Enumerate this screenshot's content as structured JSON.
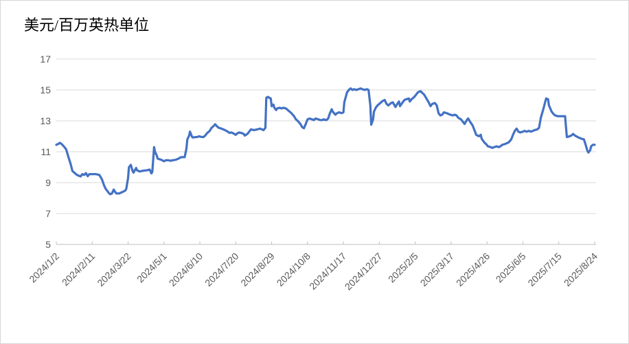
{
  "chart_data": {
    "type": "line",
    "title": "美元/百万英热单位",
    "xlabel": "",
    "ylabel": "美元/百万英热单位",
    "ylim": [
      5,
      17
    ],
    "y_ticks": [
      5,
      7,
      9,
      11,
      13,
      15,
      17
    ],
    "grid": "horizontal",
    "legend": "none",
    "x_unit": "days since 2024/1/2",
    "x_max_day": 600,
    "x_tick_days": [
      0,
      40,
      80,
      120,
      160,
      200,
      240,
      280,
      320,
      360,
      400,
      440,
      480,
      520,
      560,
      600
    ],
    "x_tick_labels": [
      "2024/1/2",
      "2024/2/11",
      "2024/3/22",
      "2024/5/1",
      "2024/6/10",
      "2024/7/20",
      "2024/8/29",
      "2024/10/8",
      "2024/11/17",
      "2024/12/27",
      "2025/2/5",
      "2025/3/17",
      "2025/4/26",
      "2025/6/5",
      "2025/7/15",
      "2025/8/24"
    ],
    "series": [
      {
        "name": "美元/百万英热单位",
        "points": [
          [
            0,
            11.45
          ],
          [
            2,
            11.5
          ],
          [
            4,
            11.58
          ],
          [
            6,
            11.5
          ],
          [
            9,
            11.3
          ],
          [
            11,
            11.15
          ],
          [
            13,
            10.75
          ],
          [
            16,
            10.2
          ],
          [
            18,
            9.75
          ],
          [
            21,
            9.6
          ],
          [
            23,
            9.5
          ],
          [
            25,
            9.45
          ],
          [
            27,
            9.4
          ],
          [
            29,
            9.55
          ],
          [
            31,
            9.5
          ],
          [
            33,
            9.62
          ],
          [
            35,
            9.42
          ],
          [
            37,
            9.55
          ],
          [
            41,
            9.55
          ],
          [
            44,
            9.55
          ],
          [
            48,
            9.5
          ],
          [
            51,
            9.2
          ],
          [
            53,
            8.85
          ],
          [
            55,
            8.6
          ],
          [
            57,
            8.45
          ],
          [
            59,
            8.3
          ],
          [
            60,
            8.25
          ],
          [
            62,
            8.3
          ],
          [
            64,
            8.55
          ],
          [
            65,
            8.45
          ],
          [
            67,
            8.3
          ],
          [
            70,
            8.3
          ],
          [
            72,
            8.35
          ],
          [
            74,
            8.4
          ],
          [
            77,
            8.5
          ],
          [
            78,
            8.6
          ],
          [
            80,
            9.3
          ],
          [
            81,
            10.0
          ],
          [
            83,
            10.15
          ],
          [
            85,
            9.75
          ],
          [
            86,
            9.65
          ],
          [
            89,
            9.95
          ],
          [
            90,
            9.8
          ],
          [
            93,
            9.72
          ],
          [
            95,
            9.75
          ],
          [
            98,
            9.78
          ],
          [
            101,
            9.8
          ],
          [
            104,
            9.85
          ],
          [
            106,
            9.6
          ],
          [
            107,
            9.7
          ],
          [
            109,
            11.3
          ],
          [
            110,
            11.0
          ],
          [
            112,
            10.75
          ],
          [
            113,
            10.55
          ],
          [
            116,
            10.5
          ],
          [
            118,
            10.45
          ],
          [
            120,
            10.38
          ],
          [
            122,
            10.45
          ],
          [
            125,
            10.45
          ],
          [
            127,
            10.42
          ],
          [
            130,
            10.45
          ],
          [
            133,
            10.48
          ],
          [
            136,
            10.55
          ],
          [
            139,
            10.65
          ],
          [
            143,
            10.65
          ],
          [
            145,
            11.2
          ],
          [
            146,
            11.8
          ],
          [
            148,
            12.05
          ],
          [
            149,
            12.3
          ],
          [
            151,
            12.0
          ],
          [
            152,
            11.92
          ],
          [
            155,
            11.95
          ],
          [
            157,
            11.95
          ],
          [
            159,
            12.0
          ],
          [
            161,
            11.97
          ],
          [
            164,
            11.95
          ],
          [
            166,
            12.05
          ],
          [
            168,
            12.2
          ],
          [
            171,
            12.35
          ],
          [
            173,
            12.55
          ],
          [
            175,
            12.65
          ],
          [
            177,
            12.78
          ],
          [
            179,
            12.65
          ],
          [
            181,
            12.55
          ],
          [
            184,
            12.5
          ],
          [
            186,
            12.45
          ],
          [
            188,
            12.4
          ],
          [
            191,
            12.3
          ],
          [
            193,
            12.22
          ],
          [
            195,
            12.25
          ],
          [
            197,
            12.2
          ],
          [
            200,
            12.1
          ],
          [
            202,
            12.2
          ],
          [
            204,
            12.25
          ],
          [
            207,
            12.2
          ],
          [
            209,
            12.15
          ],
          [
            210,
            12.05
          ],
          [
            213,
            12.15
          ],
          [
            215,
            12.3
          ],
          [
            217,
            12.45
          ],
          [
            220,
            12.4
          ],
          [
            222,
            12.42
          ],
          [
            224,
            12.45
          ],
          [
            227,
            12.5
          ],
          [
            229,
            12.45
          ],
          [
            231,
            12.4
          ],
          [
            233,
            12.55
          ],
          [
            234,
            14.5
          ],
          [
            236,
            14.55
          ],
          [
            237,
            14.5
          ],
          [
            239,
            14.45
          ],
          [
            240,
            13.95
          ],
          [
            242,
            14.05
          ],
          [
            243,
            13.85
          ],
          [
            245,
            13.7
          ],
          [
            246,
            13.8
          ],
          [
            249,
            13.85
          ],
          [
            251,
            13.8
          ],
          [
            253,
            13.85
          ],
          [
            256,
            13.8
          ],
          [
            258,
            13.7
          ],
          [
            260,
            13.6
          ],
          [
            262,
            13.5
          ],
          [
            265,
            13.3
          ],
          [
            267,
            13.1
          ],
          [
            269,
            13.0
          ],
          [
            272,
            12.8
          ],
          [
            274,
            12.6
          ],
          [
            276,
            12.52
          ],
          [
            278,
            12.8
          ],
          [
            280,
            13.1
          ],
          [
            282,
            13.15
          ],
          [
            285,
            13.1
          ],
          [
            287,
            13.05
          ],
          [
            289,
            13.15
          ],
          [
            292,
            13.1
          ],
          [
            294,
            13.05
          ],
          [
            296,
            13.05
          ],
          [
            298,
            13.1
          ],
          [
            301,
            13.05
          ],
          [
            303,
            13.15
          ],
          [
            305,
            13.5
          ],
          [
            307,
            13.75
          ],
          [
            308,
            13.6
          ],
          [
            311,
            13.4
          ],
          [
            313,
            13.5
          ],
          [
            315,
            13.55
          ],
          [
            318,
            13.5
          ],
          [
            320,
            13.55
          ],
          [
            321,
            14.2
          ],
          [
            324,
            14.85
          ],
          [
            326,
            15.0
          ],
          [
            328,
            15.1
          ],
          [
            330,
            15.0
          ],
          [
            332,
            15.05
          ],
          [
            334,
            15.0
          ],
          [
            337,
            15.05
          ],
          [
            339,
            15.1
          ],
          [
            341,
            15.05
          ],
          [
            344,
            15.0
          ],
          [
            346,
            15.05
          ],
          [
            348,
            15.0
          ],
          [
            350,
            14.0
          ],
          [
            351,
            12.75
          ],
          [
            353,
            13.1
          ],
          [
            354,
            13.6
          ],
          [
            356,
            13.85
          ],
          [
            358,
            14.0
          ],
          [
            360,
            14.1
          ],
          [
            362,
            14.2
          ],
          [
            364,
            14.3
          ],
          [
            366,
            14.35
          ],
          [
            368,
            14.1
          ],
          [
            370,
            14.0
          ],
          [
            373,
            14.15
          ],
          [
            375,
            14.2
          ],
          [
            377,
            14.0
          ],
          [
            378,
            13.9
          ],
          [
            380,
            14.1
          ],
          [
            382,
            14.25
          ],
          [
            383,
            13.95
          ],
          [
            386,
            14.2
          ],
          [
            388,
            14.35
          ],
          [
            390,
            14.4
          ],
          [
            393,
            14.45
          ],
          [
            394,
            14.25
          ],
          [
            396,
            14.4
          ],
          [
            399,
            14.55
          ],
          [
            401,
            14.7
          ],
          [
            403,
            14.85
          ],
          [
            406,
            14.92
          ],
          [
            408,
            14.8
          ],
          [
            410,
            14.7
          ],
          [
            412,
            14.5
          ],
          [
            415,
            14.2
          ],
          [
            417,
            13.95
          ],
          [
            419,
            14.1
          ],
          [
            422,
            14.15
          ],
          [
            424,
            14.0
          ],
          [
            426,
            13.5
          ],
          [
            428,
            13.35
          ],
          [
            430,
            13.4
          ],
          [
            432,
            13.55
          ],
          [
            435,
            13.5
          ],
          [
            437,
            13.45
          ],
          [
            439,
            13.4
          ],
          [
            442,
            13.35
          ],
          [
            444,
            13.4
          ],
          [
            446,
            13.35
          ],
          [
            448,
            13.2
          ],
          [
            451,
            13.1
          ],
          [
            453,
            12.95
          ],
          [
            455,
            12.8
          ],
          [
            458,
            13.1
          ],
          [
            459,
            13.15
          ],
          [
            461,
            12.95
          ],
          [
            464,
            12.7
          ],
          [
            466,
            12.4
          ],
          [
            468,
            12.1
          ],
          [
            471,
            12.0
          ],
          [
            473,
            12.1
          ],
          [
            474,
            11.85
          ],
          [
            477,
            11.6
          ],
          [
            479,
            11.5
          ],
          [
            481,
            11.35
          ],
          [
            484,
            11.3
          ],
          [
            486,
            11.25
          ],
          [
            488,
            11.3
          ],
          [
            491,
            11.35
          ],
          [
            493,
            11.3
          ],
          [
            495,
            11.35
          ],
          [
            497,
            11.45
          ],
          [
            500,
            11.5
          ],
          [
            502,
            11.55
          ],
          [
            504,
            11.6
          ],
          [
            507,
            11.8
          ],
          [
            509,
            12.1
          ],
          [
            511,
            12.35
          ],
          [
            513,
            12.5
          ],
          [
            515,
            12.3
          ],
          [
            517,
            12.25
          ],
          [
            520,
            12.3
          ],
          [
            522,
            12.35
          ],
          [
            524,
            12.3
          ],
          [
            527,
            12.35
          ],
          [
            529,
            12.3
          ],
          [
            531,
            12.35
          ],
          [
            533,
            12.4
          ],
          [
            536,
            12.45
          ],
          [
            538,
            12.55
          ],
          [
            540,
            13.2
          ],
          [
            543,
            13.8
          ],
          [
            545,
            14.25
          ],
          [
            546,
            14.45
          ],
          [
            548,
            14.4
          ],
          [
            549,
            14.0
          ],
          [
            552,
            13.6
          ],
          [
            554,
            13.45
          ],
          [
            556,
            13.35
          ],
          [
            559,
            13.3
          ],
          [
            561,
            13.3
          ],
          [
            563,
            13.3
          ],
          [
            566,
            13.3
          ],
          [
            567,
            13.3
          ],
          [
            569,
            11.95
          ],
          [
            572,
            12.0
          ],
          [
            574,
            12.05
          ],
          [
            576,
            12.15
          ],
          [
            578,
            12.05
          ],
          [
            581,
            11.95
          ],
          [
            583,
            11.9
          ],
          [
            585,
            11.85
          ],
          [
            588,
            11.8
          ],
          [
            590,
            11.45
          ],
          [
            592,
            11.05
          ],
          [
            593,
            10.95
          ],
          [
            595,
            11.1
          ],
          [
            596,
            11.35
          ],
          [
            598,
            11.45
          ],
          [
            600,
            11.45
          ]
        ]
      }
    ]
  },
  "colors": {
    "line": "#4472C4",
    "gridline": "#D9D9D9",
    "axis": "#BFBFBF",
    "tick_label": "#595959",
    "title": "#000000",
    "background": "#FFFFFF",
    "border": "#D6D6D6"
  }
}
